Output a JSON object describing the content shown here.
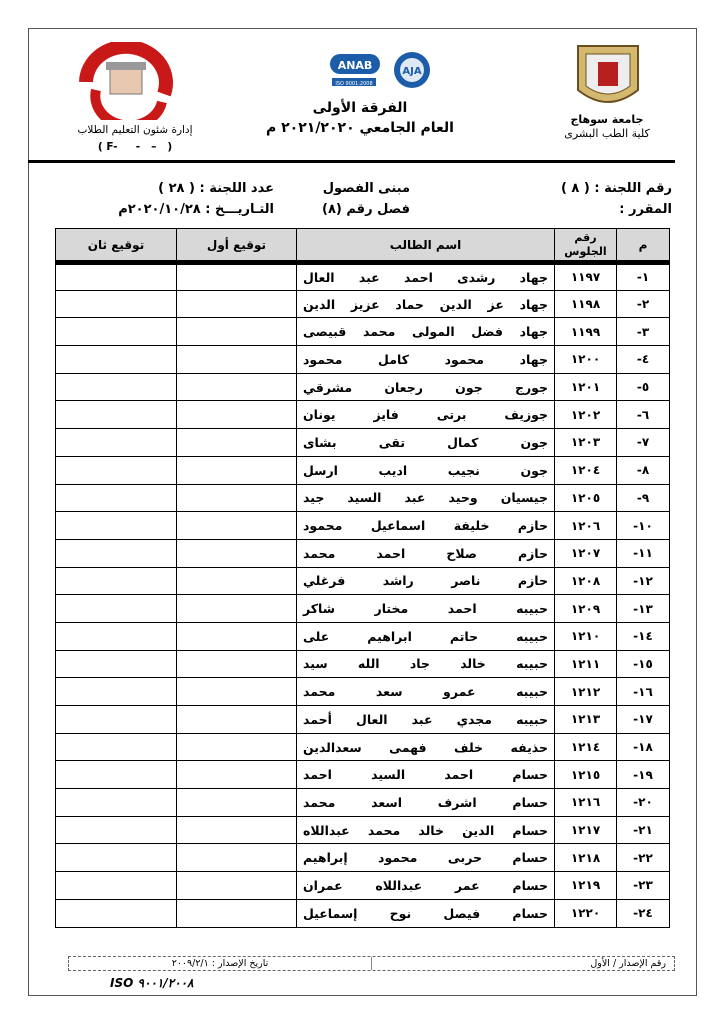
{
  "header": {
    "university": "جامعة سوهاج",
    "faculty": "كلية الطب البشرى",
    "department": "إدارة شئون التعليم الطلاب",
    "form_code": "( F-     -   –   )",
    "title": "الفرقة الأولى",
    "academic_year": "العام الجامعي ٢٠٢١/٢٠٢٠ م",
    "logos": {
      "left_text": "جامعة سوهاج كلية الطب",
      "mid": [
        "ANAB",
        "AJA"
      ],
      "mid_caption": "ISO 9001:2008"
    }
  },
  "info": {
    "committee_no": "رقم اللجنة : ( ٨ )",
    "course": "المقرر :",
    "building": "مبنى الفصول",
    "class_no": "فصل رقم (٨)",
    "committee_count": "عدد اللجنة : ( ٢٨ )",
    "date": "التـاريـــخ : ٢٠٢٠/١٠/٢٨م"
  },
  "table": {
    "headers": [
      "م",
      "رقم الجلوس",
      "اسم الطالب",
      "توقيع أول",
      "توقيع ثان"
    ],
    "rows": [
      {
        "n": "١-",
        "seat": "١١٩٧",
        "name": "جهاد رشدى احمد عبد العال"
      },
      {
        "n": "٢-",
        "seat": "١١٩٨",
        "name": "جهاد عز الدين حماد عزيز الدين"
      },
      {
        "n": "٣-",
        "seat": "١١٩٩",
        "name": "جهاد فضل المولى محمد قبيصى"
      },
      {
        "n": "٤-",
        "seat": "١٢٠٠",
        "name": "جهاد محمود كامل محمود"
      },
      {
        "n": "٥-",
        "seat": "١٢٠١",
        "name": "جورج جون رجعان مشرقي"
      },
      {
        "n": "٦-",
        "seat": "١٢٠٢",
        "name": "جوزيف برتى فايز يونان"
      },
      {
        "n": "٧-",
        "seat": "١٢٠٣",
        "name": "جون كمال تقى بشاى"
      },
      {
        "n": "٨-",
        "seat": "١٢٠٤",
        "name": "جون نجيب اديب ارسل"
      },
      {
        "n": "٩-",
        "seat": "١٢٠٥",
        "name": "جيسيان وحيد عبد السيد جيد"
      },
      {
        "n": "١٠-",
        "seat": "١٢٠٦",
        "name": "حازم خليفة اسماعيل محمود"
      },
      {
        "n": "١١-",
        "seat": "١٢٠٧",
        "name": "حازم صلاح احمد محمد"
      },
      {
        "n": "١٢-",
        "seat": "١٢٠٨",
        "name": "حازم ناصر راشد فرغلي"
      },
      {
        "n": "١٣-",
        "seat": "١٢٠٩",
        "name": "حبيبه احمد مختار شاكر"
      },
      {
        "n": "١٤-",
        "seat": "١٢١٠",
        "name": "حبيبه حاتم ابراهيم على"
      },
      {
        "n": "١٥-",
        "seat": "١٢١١",
        "name": "حبيبه خالد جاد الله سيد"
      },
      {
        "n": "١٦-",
        "seat": "١٢١٢",
        "name": "حبيبه عمرو سعد محمد"
      },
      {
        "n": "١٧-",
        "seat": "١٢١٣",
        "name": "حبيبه مجدي عبد العال أحمد"
      },
      {
        "n": "١٨-",
        "seat": "١٢١٤",
        "name": "حذيفه خلف فهمى سعدالدين"
      },
      {
        "n": "١٩-",
        "seat": "١٢١٥",
        "name": "حسام احمد السيد احمد"
      },
      {
        "n": "٢٠-",
        "seat": "١٢١٦",
        "name": "حسام اشرف اسعد محمد"
      },
      {
        "n": "٢١-",
        "seat": "١٢١٧",
        "name": "حسام الدين خالد محمد عبداللاه"
      },
      {
        "n": "٢٢-",
        "seat": "١٢١٨",
        "name": "حسام حربى محمود إبراهيم"
      },
      {
        "n": "٢٣-",
        "seat": "١٢١٩",
        "name": "حسام عمر عبداللاه عمران"
      },
      {
        "n": "٢٤-",
        "seat": "١٢٢٠",
        "name": "حسام فيصل نوح إسماعيل"
      }
    ]
  },
  "footer": {
    "issue_no": "رقم الإصدار / الأول",
    "issue_date": "تاريخ الإصدار : ٢٠٠٩/٢/١",
    "iso": "ISO ٩٠٠١/٢٠٠٨"
  }
}
